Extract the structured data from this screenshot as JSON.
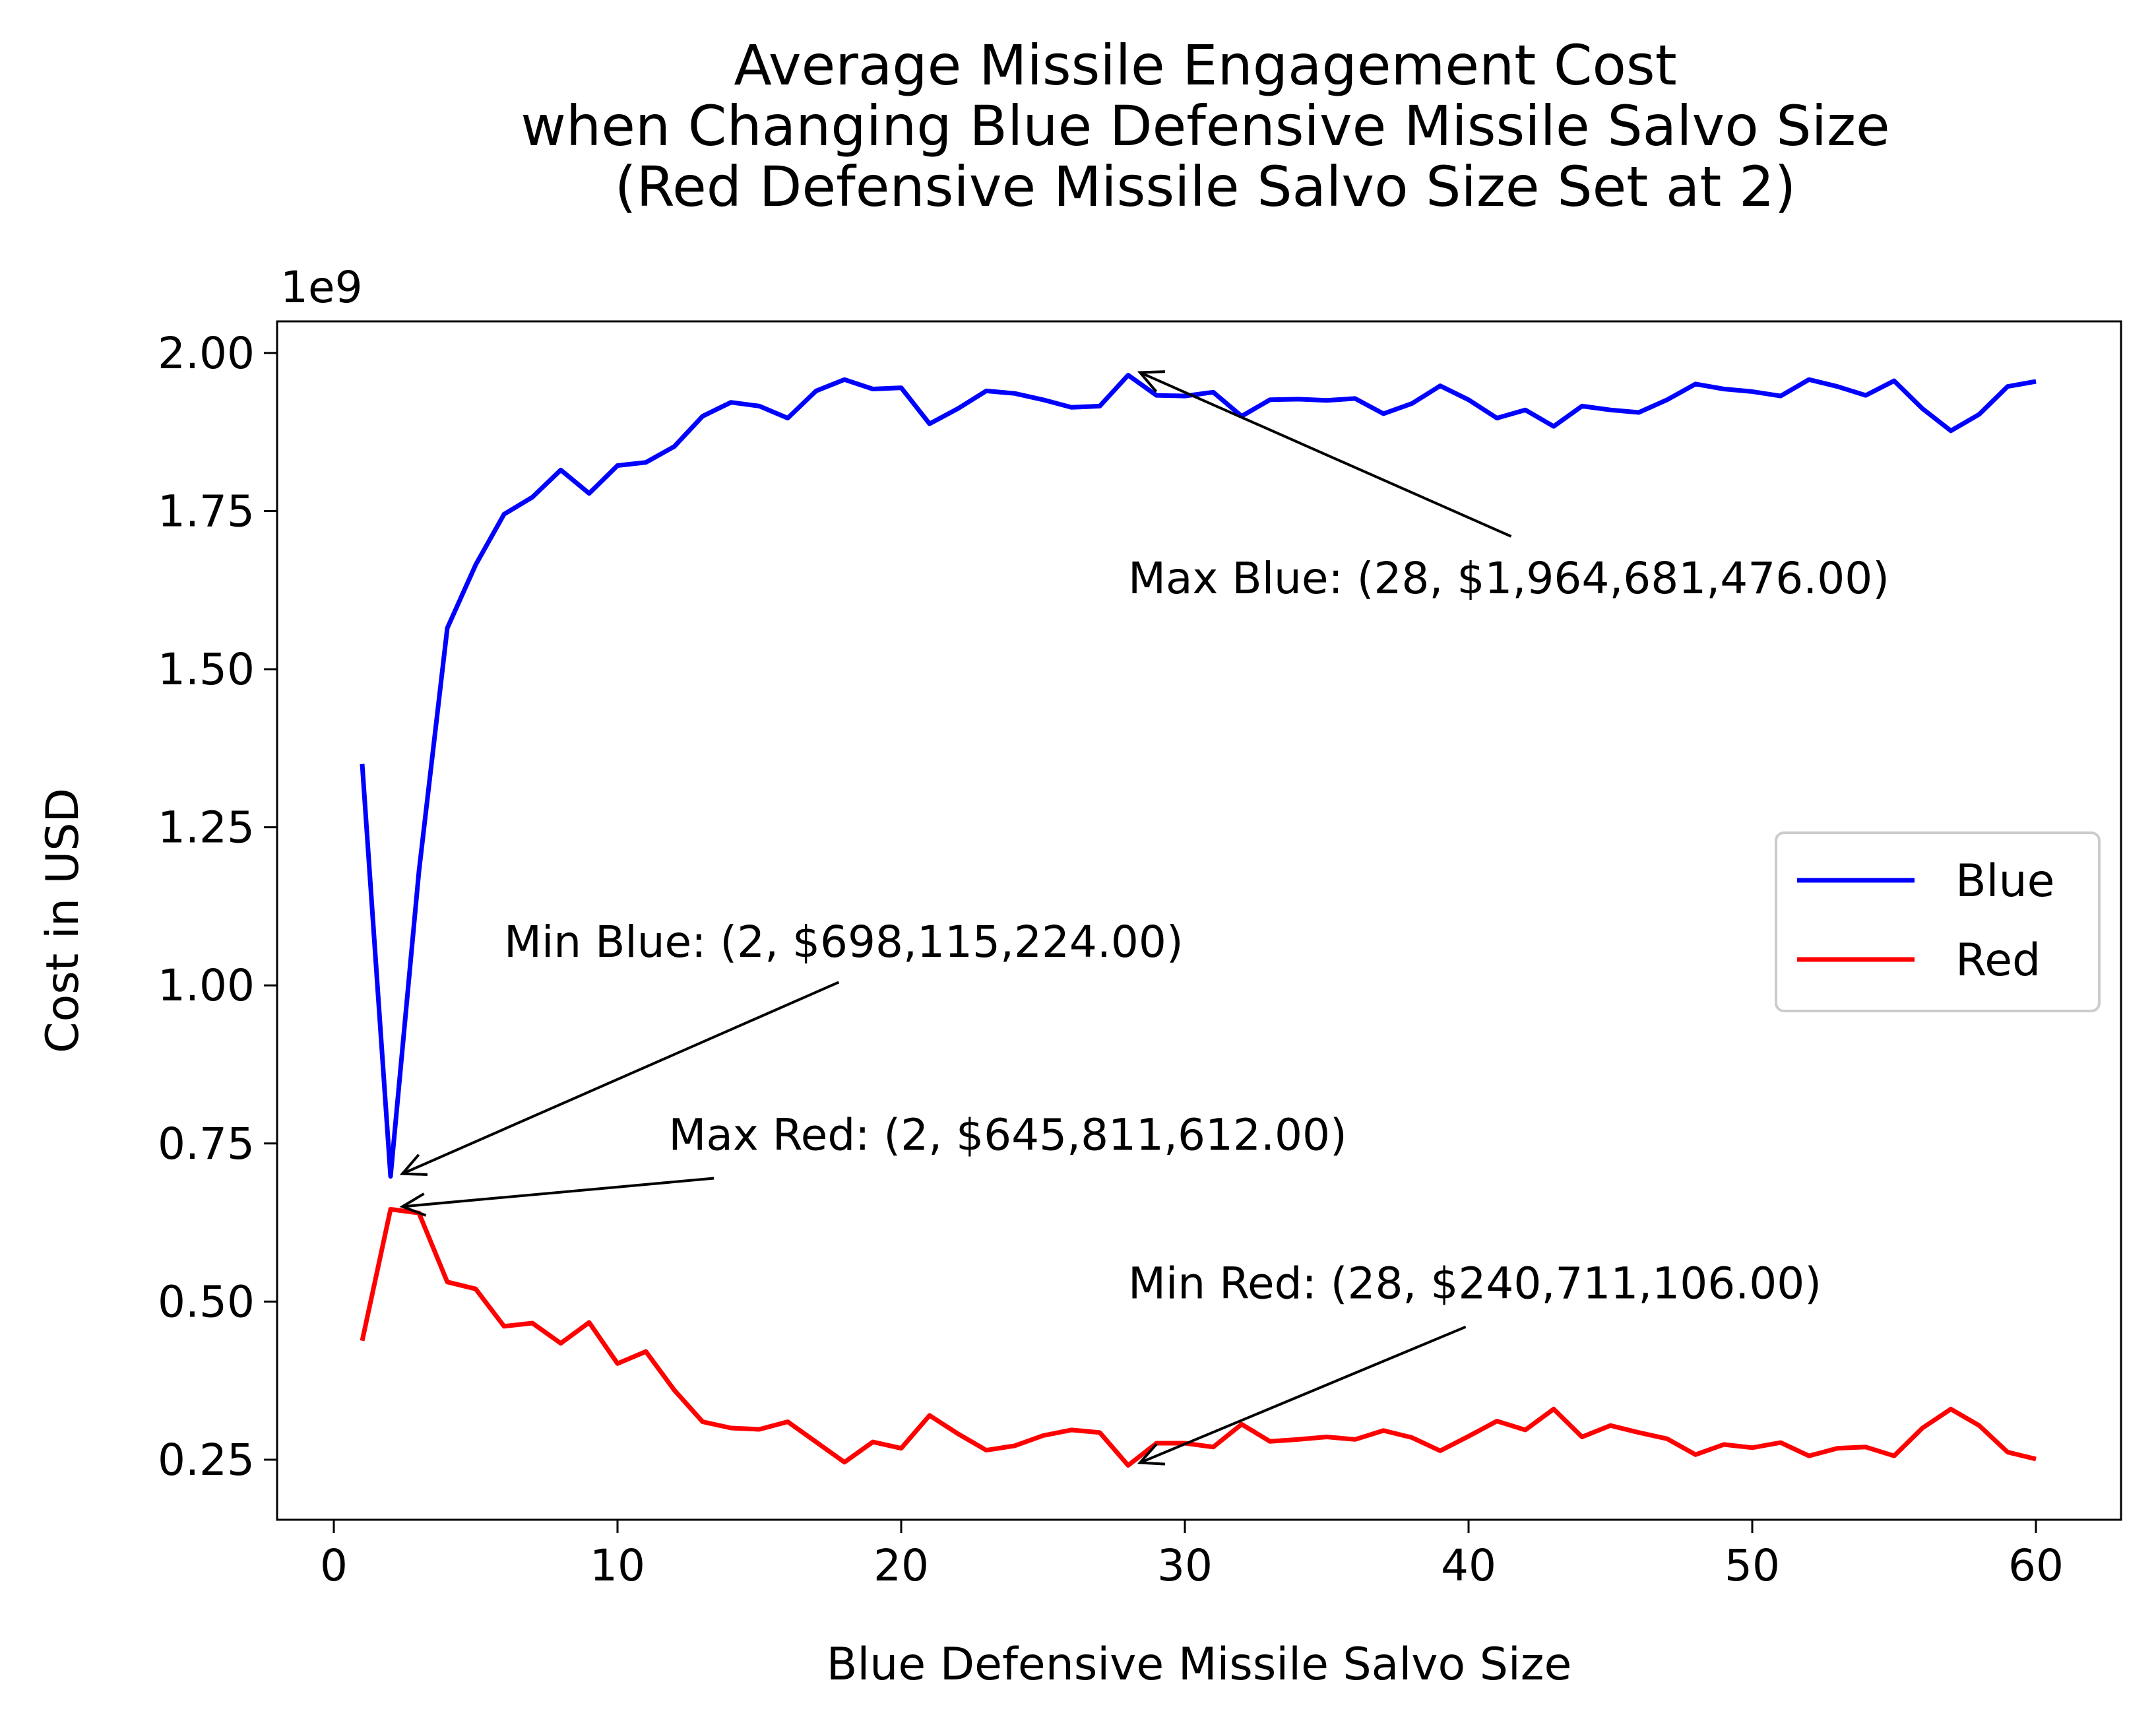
{
  "chart_data": {
    "type": "line",
    "title": "Average Missile Engagement Cost\nwhen Changing Blue Defensive Missile Salvo Size\n(Red Defensive Missile Salvo Size Set at 2)",
    "xlabel": "Blue Defensive Missile Salvo Size",
    "ylabel": "Cost in USD",
    "y_offset_label": "1e9",
    "xlim": [
      -2,
      63
    ],
    "ylim": [
      0.155,
      2.05
    ],
    "x_ticks": [
      0,
      10,
      20,
      30,
      40,
      50,
      60
    ],
    "x_tick_labels": [
      "0",
      "10",
      "20",
      "30",
      "40",
      "50",
      "60"
    ],
    "y_ticks": [
      0.25,
      0.5,
      0.75,
      1.0,
      1.25,
      1.5,
      1.75,
      2.0
    ],
    "y_tick_labels": [
      "0.25",
      "0.50",
      "0.75",
      "1.00",
      "1.25",
      "1.50",
      "1.75",
      "2.00"
    ],
    "grid": false,
    "legend_position": "center-right",
    "x": [
      1,
      2,
      3,
      4,
      5,
      6,
      7,
      8,
      9,
      10,
      11,
      12,
      13,
      14,
      15,
      16,
      17,
      18,
      19,
      20,
      21,
      22,
      23,
      24,
      25,
      26,
      27,
      28,
      29,
      30,
      31,
      32,
      33,
      34,
      35,
      36,
      37,
      38,
      39,
      40,
      41,
      42,
      43,
      44,
      45,
      46,
      47,
      48,
      49,
      50,
      51,
      52,
      53,
      54,
      55,
      56,
      57,
      58,
      59,
      60
    ],
    "series": [
      {
        "name": "Blue",
        "color": "#0000ff",
        "values": [
          1.35,
          0.698,
          1.18,
          1.565,
          1.665,
          1.745,
          1.772,
          1.815,
          1.778,
          1.822,
          1.827,
          1.852,
          1.9,
          1.922,
          1.916,
          1.897,
          1.94,
          1.958,
          1.943,
          1.945,
          1.888,
          1.912,
          1.94,
          1.936,
          1.926,
          1.914,
          1.916,
          1.965,
          1.933,
          1.932,
          1.938,
          1.9,
          1.926,
          1.927,
          1.925,
          1.928,
          1.904,
          1.92,
          1.948,
          1.926,
          1.897,
          1.91,
          1.884,
          1.916,
          1.91,
          1.906,
          1.926,
          1.951,
          1.943,
          1.939,
          1.932,
          1.958,
          1.947,
          1.933,
          1.956,
          1.912,
          1.877,
          1.903,
          1.947,
          1.955
        ]
      },
      {
        "name": "Red",
        "color": "#ff0000",
        "values": [
          0.438,
          0.646,
          0.64,
          0.531,
          0.52,
          0.461,
          0.466,
          0.434,
          0.467,
          0.402,
          0.421,
          0.36,
          0.31,
          0.3,
          0.298,
          0.31,
          0.278,
          0.246,
          0.278,
          0.268,
          0.32,
          0.291,
          0.265,
          0.272,
          0.288,
          0.297,
          0.293,
          0.241,
          0.276,
          0.276,
          0.27,
          0.306,
          0.279,
          0.282,
          0.286,
          0.282,
          0.296,
          0.285,
          0.264,
          0.287,
          0.311,
          0.297,
          0.33,
          0.286,
          0.304,
          0.293,
          0.283,
          0.258,
          0.274,
          0.269,
          0.277,
          0.256,
          0.268,
          0.27,
          0.256,
          0.3,
          0.33,
          0.304,
          0.262,
          0.251
        ]
      }
    ],
    "annotations": [
      {
        "text": "Max Blue: (28, $1,964,681,476.00)",
        "point": [
          28,
          1.965
        ],
        "text_pos": [
          28,
          1.62
        ],
        "arrow_tail": [
          41.5,
          1.71
        ]
      },
      {
        "text": "Min Blue: (2, $698,115,224.00)",
        "point": [
          2,
          0.698
        ],
        "text_pos": [
          6,
          1.045
        ],
        "arrow_tail": [
          17.8,
          1.005
        ]
      },
      {
        "text": "Max Red: (2, $645,811,612.00)",
        "point": [
          2,
          0.646
        ],
        "text_pos": [
          11.8,
          0.74
        ],
        "arrow_tail": [
          13.4,
          0.695
        ]
      },
      {
        "text": "Min Red: (28, $240,711,106.00)",
        "point": [
          28,
          0.241
        ],
        "text_pos": [
          28,
          0.505
        ],
        "arrow_tail": [
          39.9,
          0.46
        ]
      }
    ]
  }
}
